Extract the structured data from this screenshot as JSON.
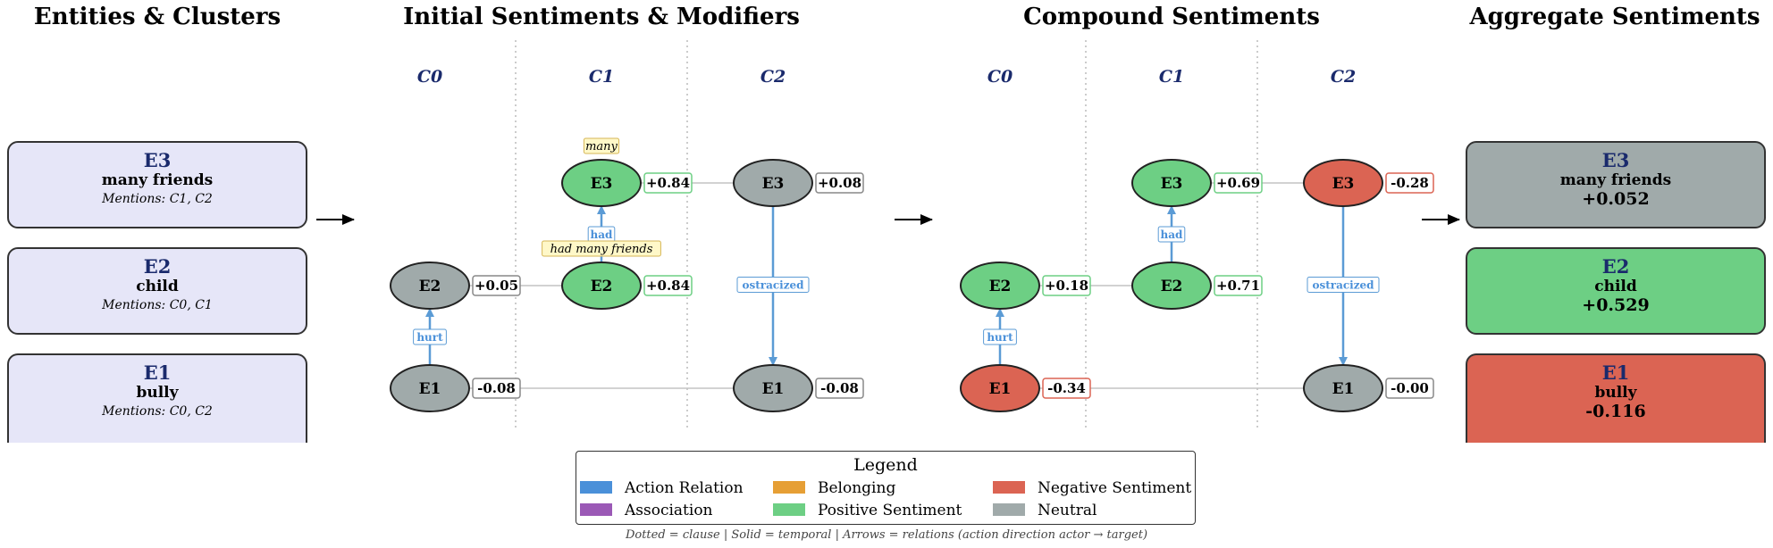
{
  "sections": {
    "entities": "Entities & Clusters",
    "initial": "Initial Sentiments & Modifiers",
    "compound": "Compound Sentiments",
    "aggregate": "Aggregate Sentiments"
  },
  "colors": {
    "positive": "#6dcf84",
    "negative": "#db6453",
    "neutral": "#a0aaaa",
    "action": "#4a90d9",
    "association": "#9b59b6",
    "belonging": "#e69f35",
    "entity_card": "#e6e6f8",
    "cluster_label": "#1a2a6c"
  },
  "entities": [
    {
      "id": "E3",
      "name": "many friends",
      "mentions": "Mentions: C1, C2"
    },
    {
      "id": "E2",
      "name": "child",
      "mentions": "Mentions: C0, C1"
    },
    {
      "id": "E1",
      "name": "bully",
      "mentions": "Mentions: C0, C2"
    }
  ],
  "initial": {
    "clusters": [
      "C0",
      "C1",
      "C2"
    ],
    "nodes": [
      {
        "id": "E2",
        "cluster": "C0",
        "score": "+0.05",
        "sentiment": "neutral"
      },
      {
        "id": "E1",
        "cluster": "C0",
        "score": "-0.08",
        "sentiment": "neutral"
      },
      {
        "id": "E3",
        "cluster": "C1",
        "score": "+0.84",
        "sentiment": "positive",
        "modifier": "many"
      },
      {
        "id": "E2",
        "cluster": "C1",
        "score": "+0.84",
        "sentiment": "positive",
        "modifier": "had many friends"
      },
      {
        "id": "E3",
        "cluster": "C2",
        "score": "+0.08",
        "sentiment": "neutral"
      },
      {
        "id": "E1",
        "cluster": "C2",
        "score": "-0.08",
        "sentiment": "neutral"
      }
    ],
    "relations": [
      {
        "label": "hurt",
        "from": "E1",
        "to": "E2",
        "cluster": "C0"
      },
      {
        "label": "had",
        "from": "E2",
        "to": "E3",
        "cluster": "C1"
      },
      {
        "label": "ostracized",
        "from": "E3",
        "to": "E1",
        "cluster": "C2"
      }
    ]
  },
  "compound": {
    "clusters": [
      "C0",
      "C1",
      "C2"
    ],
    "nodes": [
      {
        "id": "E2",
        "cluster": "C0",
        "score": "+0.18",
        "sentiment": "positive"
      },
      {
        "id": "E1",
        "cluster": "C0",
        "score": "-0.34",
        "sentiment": "negative"
      },
      {
        "id": "E3",
        "cluster": "C1",
        "score": "+0.69",
        "sentiment": "positive"
      },
      {
        "id": "E2",
        "cluster": "C1",
        "score": "+0.71",
        "sentiment": "positive"
      },
      {
        "id": "E3",
        "cluster": "C2",
        "score": "-0.28",
        "sentiment": "negative"
      },
      {
        "id": "E1",
        "cluster": "C2",
        "score": "-0.00",
        "sentiment": "neutral"
      }
    ],
    "relations": [
      {
        "label": "hurt",
        "from": "E1",
        "to": "E2",
        "cluster": "C0"
      },
      {
        "label": "had",
        "from": "E2",
        "to": "E3",
        "cluster": "C1"
      },
      {
        "label": "ostracized",
        "from": "E3",
        "to": "E1",
        "cluster": "C2"
      }
    ]
  },
  "aggregate": [
    {
      "id": "E3",
      "name": "many friends",
      "score": "+0.052",
      "sentiment": "neutral"
    },
    {
      "id": "E2",
      "name": "child",
      "score": "+0.529",
      "sentiment": "positive"
    },
    {
      "id": "E1",
      "name": "bully",
      "score": "-0.116",
      "sentiment": "negative"
    }
  ],
  "legend": {
    "title": "Legend",
    "items": [
      {
        "label": "Action Relation",
        "color_key": "action"
      },
      {
        "label": "Association",
        "color_key": "association"
      },
      {
        "label": "Belonging",
        "color_key": "belonging"
      },
      {
        "label": "Positive Sentiment",
        "color_key": "positive"
      },
      {
        "label": "Negative Sentiment",
        "color_key": "negative"
      },
      {
        "label": "Neutral",
        "color_key": "neutral"
      }
    ]
  },
  "caption": "Dotted = clause | Solid = temporal | Arrows = relations (action direction actor → target)"
}
